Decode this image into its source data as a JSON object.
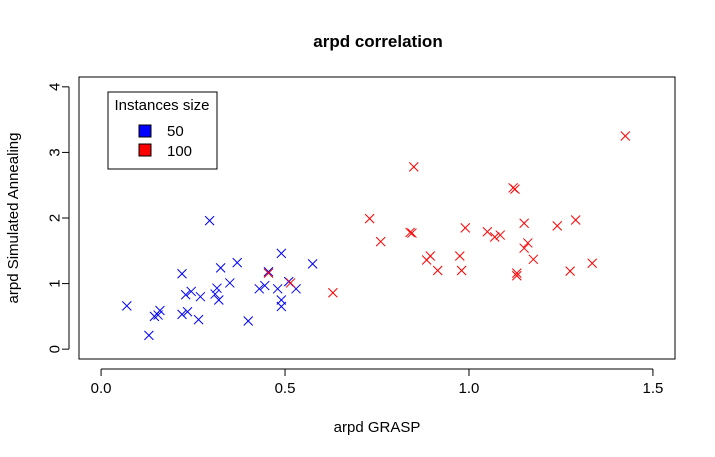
{
  "chart_data": {
    "type": "scatter",
    "title": "arpd correlation",
    "xlabel": "arpd GRASP",
    "ylabel": "arpd Simulated Annealing",
    "xlim": [
      -0.06,
      1.56
    ],
    "ylim": [
      -0.15,
      4.15
    ],
    "x_ticks": [
      {
        "value": 0.0,
        "label": "0.0"
      },
      {
        "value": 0.5,
        "label": "0.5"
      },
      {
        "value": 1.0,
        "label": "1.0"
      },
      {
        "value": 1.5,
        "label": "1.5"
      }
    ],
    "y_ticks": [
      {
        "value": 0,
        "label": "0"
      },
      {
        "value": 1,
        "label": "1"
      },
      {
        "value": 2,
        "label": "2"
      },
      {
        "value": 3,
        "label": "3"
      },
      {
        "value": 4,
        "label": "4"
      }
    ],
    "grid": false,
    "marker": "x",
    "legend": {
      "title": "Instances size",
      "position": "top-left",
      "entries": [
        {
          "label": "50",
          "color": "#0000ff"
        },
        {
          "label": "100",
          "color": "#ff0000"
        }
      ]
    },
    "series": [
      {
        "name": "50",
        "color": "#0000ff",
        "points": [
          [
            0.07,
            0.66
          ],
          [
            0.13,
            0.21
          ],
          [
            0.145,
            0.5
          ],
          [
            0.155,
            0.52
          ],
          [
            0.16,
            0.59
          ],
          [
            0.22,
            1.15
          ],
          [
            0.22,
            0.53
          ],
          [
            0.23,
            0.83
          ],
          [
            0.235,
            0.57
          ],
          [
            0.245,
            0.88
          ],
          [
            0.265,
            0.45
          ],
          [
            0.27,
            0.8
          ],
          [
            0.295,
            1.96
          ],
          [
            0.31,
            0.84
          ],
          [
            0.315,
            0.93
          ],
          [
            0.32,
            0.75
          ],
          [
            0.325,
            1.24
          ],
          [
            0.35,
            1.01
          ],
          [
            0.37,
            1.32
          ],
          [
            0.4,
            0.43
          ],
          [
            0.43,
            0.92
          ],
          [
            0.445,
            0.97
          ],
          [
            0.455,
            1.18
          ],
          [
            0.48,
            0.92
          ],
          [
            0.49,
            1.46
          ],
          [
            0.49,
            0.75
          ],
          [
            0.49,
            0.65
          ],
          [
            0.51,
            1.03
          ],
          [
            0.53,
            0.92
          ],
          [
            0.575,
            1.3
          ]
        ]
      },
      {
        "name": "100",
        "color": "#ff0000",
        "points": [
          [
            0.455,
            1.16
          ],
          [
            0.515,
            1.01
          ],
          [
            0.63,
            0.86
          ],
          [
            0.73,
            1.99
          ],
          [
            0.76,
            1.64
          ],
          [
            0.84,
            1.78
          ],
          [
            0.845,
            1.77
          ],
          [
            0.85,
            2.78
          ],
          [
            0.885,
            1.36
          ],
          [
            0.895,
            1.42
          ],
          [
            0.915,
            1.2
          ],
          [
            0.975,
            1.42
          ],
          [
            0.98,
            1.2
          ],
          [
            0.99,
            1.85
          ],
          [
            1.05,
            1.79
          ],
          [
            1.07,
            1.71
          ],
          [
            1.085,
            1.74
          ],
          [
            1.12,
            2.46
          ],
          [
            1.125,
            2.44
          ],
          [
            1.13,
            1.16
          ],
          [
            1.13,
            1.12
          ],
          [
            1.15,
            1.92
          ],
          [
            1.15,
            1.54
          ],
          [
            1.16,
            1.62
          ],
          [
            1.175,
            1.37
          ],
          [
            1.24,
            1.88
          ],
          [
            1.275,
            1.19
          ],
          [
            1.29,
            1.97
          ],
          [
            1.335,
            1.31
          ],
          [
            1.425,
            3.25
          ]
        ]
      }
    ]
  }
}
